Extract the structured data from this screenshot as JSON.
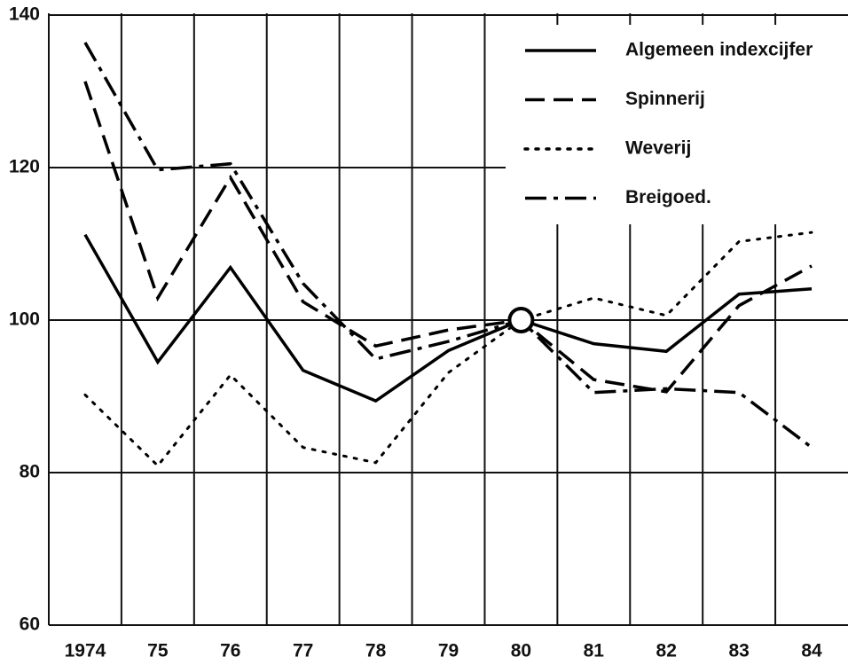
{
  "chart_data": {
    "type": "line",
    "categories": [
      "1974",
      "75",
      "76",
      "77",
      "78",
      "79",
      "80",
      "81",
      "82",
      "83",
      "84"
    ],
    "ylim": [
      60,
      140
    ],
    "yticks": [
      60,
      80,
      100,
      120,
      140
    ],
    "grid": true,
    "legend": "upper right",
    "series": [
      {
        "name": "Algemeen indexcijfer",
        "color": "#000000",
        "dash": "solid",
        "values": [
          111.2,
          94.5,
          106.9,
          93.4,
          89.4,
          96,
          100,
          96.9,
          95.9,
          103.4,
          104.1
        ]
      },
      {
        "name": "Spinnerij",
        "color": "#000000",
        "dash": "dashed",
        "values": [
          131.3,
          102.9,
          118.7,
          102.4,
          96.6,
          98.7,
          100,
          92.2,
          90.6,
          101.9,
          107.1
        ]
      },
      {
        "name": "Weverij",
        "color": "#000000",
        "dash": "dotted",
        "values": [
          90.2,
          80.9,
          92.8,
          83.3,
          81.3,
          93.1,
          100,
          102.9,
          100.6,
          110.3,
          111.5
        ]
      },
      {
        "name": "Breigoed.",
        "color": "#000000",
        "dash": "dashdot",
        "values": [
          136.4,
          119.7,
          120.5,
          104.8,
          94.9,
          97.2,
          100,
          90.5,
          91.0,
          90.5,
          83.3
        ]
      }
    ]
  }
}
